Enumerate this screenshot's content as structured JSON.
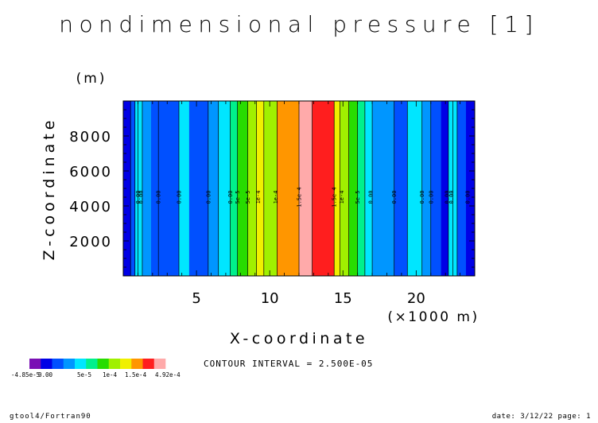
{
  "chart_data": {
    "type": "heatmap",
    "title": "nondimensional pressure [1]",
    "xlabel": "X-coordinate",
    "x_unit": "(×1000 m)",
    "ylabel": "Z-coordinate",
    "y_unit": "(m)",
    "xlim": [
      0,
      24
    ],
    "ylim": [
      0,
      10000
    ],
    "x_ticks": [
      5,
      10,
      15,
      20
    ],
    "y_ticks": [
      2000,
      4000,
      6000,
      8000
    ],
    "bands": [
      {
        "x0": 0.0,
        "x1": 0.5,
        "level": 1
      },
      {
        "x0": 0.5,
        "x1": 0.8,
        "level": 2
      },
      {
        "x0": 0.8,
        "x1": 1.3,
        "level": 4
      },
      {
        "x0": 1.3,
        "x1": 1.9,
        "level": 3
      },
      {
        "x0": 1.9,
        "x1": 2.4,
        "level": 2
      },
      {
        "x0": 2.4,
        "x1": 3.8,
        "level": 2
      },
      {
        "x0": 3.8,
        "x1": 4.5,
        "level": 4
      },
      {
        "x0": 4.5,
        "x1": 5.8,
        "level": 2
      },
      {
        "x0": 5.8,
        "x1": 6.5,
        "level": 3
      },
      {
        "x0": 6.5,
        "x1": 7.3,
        "level": 4
      },
      {
        "x0": 7.3,
        "x1": 7.8,
        "level": 5
      },
      {
        "x0": 7.8,
        "x1": 8.5,
        "level": 6
      },
      {
        "x0": 8.5,
        "x1": 9.1,
        "level": 7
      },
      {
        "x0": 9.1,
        "x1": 9.6,
        "level": 8
      },
      {
        "x0": 9.6,
        "x1": 10.5,
        "level": 7
      },
      {
        "x0": 10.5,
        "x1": 12.0,
        "level": 9
      },
      {
        "x0": 12.0,
        "x1": 12.9,
        "level": 11
      },
      {
        "x0": 12.9,
        "x1": 14.4,
        "level": 10
      },
      {
        "x0": 14.4,
        "x1": 14.8,
        "level": 8
      },
      {
        "x0": 14.8,
        "x1": 15.4,
        "level": 7
      },
      {
        "x0": 15.4,
        "x1": 16.0,
        "level": 6
      },
      {
        "x0": 16.0,
        "x1": 16.5,
        "level": 5
      },
      {
        "x0": 16.5,
        "x1": 17.0,
        "level": 4
      },
      {
        "x0": 17.0,
        "x1": 18.5,
        "level": 3
      },
      {
        "x0": 18.5,
        "x1": 19.4,
        "level": 2
      },
      {
        "x0": 19.4,
        "x1": 20.4,
        "level": 4
      },
      {
        "x0": 20.4,
        "x1": 21.0,
        "level": 3
      },
      {
        "x0": 21.0,
        "x1": 21.7,
        "level": 2
      },
      {
        "x0": 21.7,
        "x1": 22.2,
        "level": 1
      },
      {
        "x0": 22.2,
        "x1": 22.8,
        "level": 4
      },
      {
        "x0": 22.8,
        "x1": 23.4,
        "level": 2
      },
      {
        "x0": 23.4,
        "x1": 24.0,
        "level": 1
      }
    ],
    "contour_lines_x": [
      0.5,
      0.8,
      1.0,
      1.3,
      2.4,
      3.8,
      5.8,
      6.5,
      7.3,
      7.8,
      8.5,
      9.1,
      9.6,
      10.5,
      12.0,
      12.9,
      14.4,
      14.8,
      15.4,
      16.0,
      16.5,
      17.0,
      18.5,
      19.4,
      20.4,
      21.0,
      22.2,
      22.5,
      22.8
    ],
    "contour_labels": [
      {
        "x": 1.0,
        "text": "0.00"
      },
      {
        "x": 1.2,
        "text": "0.00"
      },
      {
        "x": 2.4,
        "text": "0.00"
      },
      {
        "x": 3.8,
        "text": "0.00"
      },
      {
        "x": 5.8,
        "text": "0.00"
      },
      {
        "x": 7.3,
        "text": "0.00"
      },
      {
        "x": 7.8,
        "text": "5e-5"
      },
      {
        "x": 8.5,
        "text": "5e-5"
      },
      {
        "x": 9.2,
        "text": "1e-4"
      },
      {
        "x": 10.4,
        "text": "1e-4"
      },
      {
        "x": 12.0,
        "text": "1.5e-4"
      },
      {
        "x": 14.4,
        "text": "1.5e-4"
      },
      {
        "x": 14.9,
        "text": "1e-4"
      },
      {
        "x": 16.0,
        "text": "5e-5"
      },
      {
        "x": 16.9,
        "text": "0.00"
      },
      {
        "x": 18.5,
        "text": "0.00"
      },
      {
        "x": 20.4,
        "text": "0.00"
      },
      {
        "x": 21.0,
        "text": "0.00"
      },
      {
        "x": 22.1,
        "text": "0.00"
      },
      {
        "x": 22.4,
        "text": "0.00"
      },
      {
        "x": 23.5,
        "text": "0.00"
      }
    ]
  },
  "colorbar": {
    "colors": [
      "#7a10b4",
      "#0000e6",
      "#0050ff",
      "#0096ff",
      "#00e6ff",
      "#00f08c",
      "#28dc00",
      "#a0f000",
      "#f0f000",
      "#ff9600",
      "#ff1e1e",
      "#ffaaaa"
    ],
    "label_min": "-4.85e-5",
    "label_zero": "0.00",
    "label_5e5": "5e-5",
    "label_1e4": "1e-4",
    "label_15e4": "1.5e-4",
    "label_max": "4.92e-4"
  },
  "contour_interval": "CONTOUR INTERVAL = 2.500E-05",
  "footer": {
    "left": "gtool4/Fortran90",
    "right": "date: 3/12/22 page: 1"
  }
}
